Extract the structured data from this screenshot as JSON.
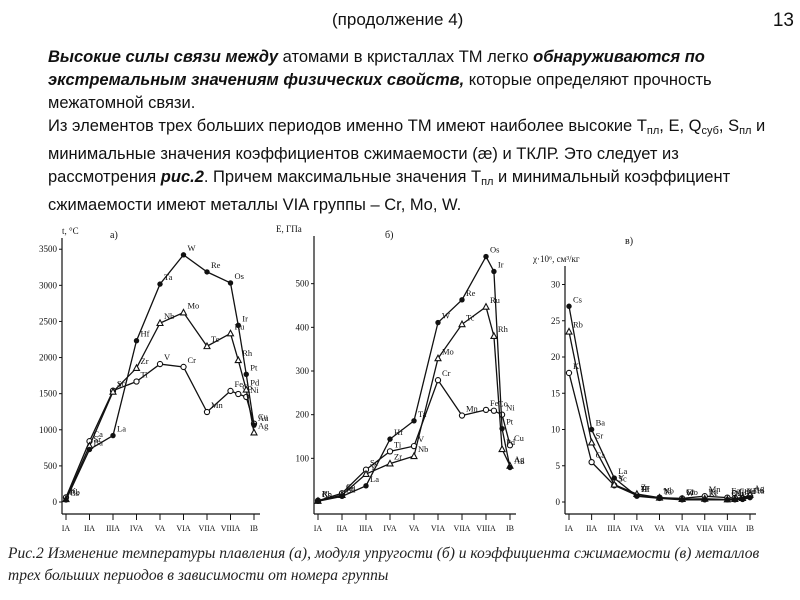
{
  "header": {
    "subtitle": "(продолжение 4)",
    "page_number": "13"
  },
  "paragraph1": {
    "part1_bi": "Высокие силы связи между",
    "part2": " атомами в кристаллах ТМ легко ",
    "part3_bi": "обнаруживаются по экстремальным значениям физических свойств,",
    "part4": " которые определяют прочность межатомной связи."
  },
  "paragraph2": {
    "t1": "Из элементов трех больших периодов именно ТМ имеют наиболее высокие Т",
    "t1_sub": "пл",
    "t2": ", Е, Q",
    "t2_sub": "суб",
    "t3": ", S",
    "t3_sub": "пл",
    "t4": " и минимальные значения коэффициентов сжимаемости (æ) и ТКЛР. Это следует из рассмотрения ",
    "t4_bi": "рис.2",
    "t5": ". Причем максимальные значения Т",
    "t5_sub": "пл",
    "t6": " и минимальный коэффициент сжимаемости имеют металлы VIA группы – Cr, Mo, W."
  },
  "caption": "Рис.2 Изменение температуры плавления (а), модуля упругости (б) и коэффициента сжимаемости (в) металлов трех больших периодов в зависимости от номера группы",
  "chart_data": [
    {
      "type": "line",
      "panel_label": "а)",
      "ylabel": "t, °C",
      "ylim": [
        0,
        3600
      ],
      "yticks": [
        0,
        500,
        1000,
        1500,
        2000,
        2500,
        3000,
        3500
      ],
      "groups": [
        "IA",
        "IIA",
        "IIIA",
        "IVA",
        "VA",
        "VIA",
        "VIIA",
        "VIIIA",
        "IB"
      ],
      "series": [
        {
          "points": [
            {
              "x": 1,
              "y": 64,
              "label": "K"
            },
            {
              "x": 2,
              "y": 842,
              "label": "Ca"
            },
            {
              "x": 3,
              "y": 1541,
              "label": "Sc"
            },
            {
              "x": 4,
              "y": 1668,
              "label": "Ti"
            },
            {
              "x": 5,
              "y": 1910,
              "label": "V"
            },
            {
              "x": 6,
              "y": 1870,
              "label": "Cr"
            },
            {
              "x": 7,
              "y": 1246,
              "label": "Mn"
            },
            {
              "x": 8,
              "y": 1538,
              "label": "Fe"
            },
            {
              "x": 8.33,
              "y": 1495,
              "label": "Co"
            },
            {
              "x": 8.67,
              "y": 1455,
              "label": "Ni"
            },
            {
              "x": 9,
              "y": 1085,
              "label": "Cu"
            }
          ]
        },
        {
          "points": [
            {
              "x": 1,
              "y": 39,
              "label": "Rb"
            },
            {
              "x": 2,
              "y": 777,
              "label": "Sr"
            },
            {
              "x": 3,
              "y": 1526,
              "label": "Y"
            },
            {
              "x": 4,
              "y": 1855,
              "label": "Zr"
            },
            {
              "x": 5,
              "y": 2477,
              "label": "Nb"
            },
            {
              "x": 6,
              "y": 2623,
              "label": "Mo"
            },
            {
              "x": 7,
              "y": 2157,
              "label": "Tc"
            },
            {
              "x": 8,
              "y": 2334,
              "label": "Ru"
            },
            {
              "x": 8.33,
              "y": 1964,
              "label": "Rh"
            },
            {
              "x": 8.67,
              "y": 1555,
              "label": "Pd"
            },
            {
              "x": 9,
              "y": 962,
              "label": "Ag"
            }
          ]
        },
        {
          "points": [
            {
              "x": 1,
              "y": 28,
              "label": "Cs"
            },
            {
              "x": 2,
              "y": 727,
              "label": "Ba"
            },
            {
              "x": 3,
              "y": 920,
              "label": "La"
            },
            {
              "x": 4,
              "y": 2233,
              "label": "Hf"
            },
            {
              "x": 5,
              "y": 3017,
              "label": "Ta"
            },
            {
              "x": 6,
              "y": 3422,
              "label": "W"
            },
            {
              "x": 7,
              "y": 3186,
              "label": "Re"
            },
            {
              "x": 8,
              "y": 3033,
              "label": "Os"
            },
            {
              "x": 8.33,
              "y": 2446,
              "label": "Ir"
            },
            {
              "x": 8.67,
              "y": 1768,
              "label": "Pt"
            },
            {
              "x": 9,
              "y": 1064,
              "label": "Au"
            }
          ]
        }
      ]
    },
    {
      "type": "line",
      "panel_label": "б)",
      "ylabel": "E, ГПа",
      "ylim": [
        0,
        600
      ],
      "yticks": [
        100,
        200,
        300,
        400,
        500
      ],
      "groups": [
        "IA",
        "IIA",
        "IIIA",
        "IVA",
        "VA",
        "VIA",
        "VIIA",
        "VIIIA",
        "IB"
      ],
      "series": [
        {
          "points": [
            {
              "x": 1,
              "y": 3,
              "label": "K"
            },
            {
              "x": 2,
              "y": 20,
              "label": "Ca"
            },
            {
              "x": 3,
              "y": 74,
              "label": "Sc"
            },
            {
              "x": 4,
              "y": 116,
              "label": "Ti"
            },
            {
              "x": 5,
              "y": 128,
              "label": "V"
            },
            {
              "x": 6,
              "y": 279,
              "label": "Cr"
            },
            {
              "x": 7,
              "y": 198,
              "label": "Mn"
            },
            {
              "x": 8,
              "y": 211,
              "label": "Fe"
            },
            {
              "x": 8.33,
              "y": 209,
              "label": "Co"
            },
            {
              "x": 8.67,
              "y": 200,
              "label": "Ni"
            },
            {
              "x": 9,
              "y": 130,
              "label": "Cu"
            }
          ]
        },
        {
          "points": [
            {
              "x": 1,
              "y": 2.4,
              "label": "Rb"
            },
            {
              "x": 2,
              "y": 16,
              "label": "Sr"
            },
            {
              "x": 3,
              "y": 64,
              "label": "Y"
            },
            {
              "x": 4,
              "y": 88,
              "label": "Zr"
            },
            {
              "x": 5,
              "y": 105,
              "label": "Nb"
            },
            {
              "x": 6,
              "y": 329,
              "label": "Mo"
            },
            {
              "x": 7,
              "y": 407,
              "label": "Tc"
            },
            {
              "x": 8,
              "y": 447,
              "label": "Ru"
            },
            {
              "x": 8.33,
              "y": 380,
              "label": "Rh"
            },
            {
              "x": 8.67,
              "y": 121,
              "label": "Pd"
            },
            {
              "x": 9,
              "y": 83,
              "label": "Ag"
            }
          ]
        },
        {
          "points": [
            {
              "x": 1,
              "y": 1.7,
              "label": "Cs"
            },
            {
              "x": 2,
              "y": 13,
              "label": "Ba"
            },
            {
              "x": 3,
              "y": 37,
              "label": "La"
            },
            {
              "x": 4,
              "y": 144,
              "label": "Hf"
            },
            {
              "x": 5,
              "y": 186,
              "label": "Ta"
            },
            {
              "x": 6,
              "y": 411,
              "label": "W"
            },
            {
              "x": 7,
              "y": 463,
              "label": "Re"
            },
            {
              "x": 8,
              "y": 562,
              "label": "Os"
            },
            {
              "x": 8.33,
              "y": 528,
              "label": "Ir"
            },
            {
              "x": 8.67,
              "y": 168,
              "label": "Pt"
            },
            {
              "x": 9,
              "y": 79,
              "label": "Au"
            }
          ]
        }
      ]
    },
    {
      "type": "line",
      "panel_label": "в)",
      "ylabel": "χ·10⁶, см³/кг",
      "ylim": [
        0,
        32
      ],
      "yticks": [
        0,
        5,
        10,
        15,
        20,
        25,
        30
      ],
      "groups": [
        "IA",
        "IIA",
        "IIIA",
        "IVA",
        "VA",
        "VIA",
        "VIIA",
        "VIIIA",
        "IB"
      ],
      "series": [
        {
          "points": [
            {
              "x": 1,
              "y": 17.8,
              "label": "K"
            },
            {
              "x": 2,
              "y": 5.5,
              "label": "Ca"
            },
            {
              "x": 3,
              "y": 2.3,
              "label": "Sc"
            },
            {
              "x": 4,
              "y": 0.9,
              "label": "Ti"
            },
            {
              "x": 5,
              "y": 0.6,
              "label": "V"
            },
            {
              "x": 6,
              "y": 0.5,
              "label": "Cr"
            },
            {
              "x": 7,
              "y": 0.8,
              "label": "Mn"
            },
            {
              "x": 8,
              "y": 0.6,
              "label": "Fe"
            },
            {
              "x": 8.33,
              "y": 0.55,
              "label": "Co"
            },
            {
              "x": 8.67,
              "y": 0.55,
              "label": "Ni"
            },
            {
              "x": 9,
              "y": 0.7,
              "label": "Cu"
            }
          ]
        },
        {
          "points": [
            {
              "x": 1,
              "y": 23.5,
              "label": "Rb"
            },
            {
              "x": 2,
              "y": 8.2,
              "label": "Sr"
            },
            {
              "x": 3,
              "y": 2.4,
              "label": "Y"
            },
            {
              "x": 4,
              "y": 1.1,
              "label": "Zr"
            },
            {
              "x": 5,
              "y": 0.6,
              "label": "Nb"
            },
            {
              "x": 6,
              "y": 0.4,
              "label": "Mo"
            },
            {
              "x": 7,
              "y": 0.45,
              "label": "Tc"
            },
            {
              "x": 8,
              "y": 0.35,
              "label": "Ru"
            },
            {
              "x": 8.33,
              "y": 0.4,
              "label": "Rh"
            },
            {
              "x": 8.67,
              "y": 0.55,
              "label": "Pd"
            },
            {
              "x": 9,
              "y": 1.0,
              "label": "Ag"
            }
          ]
        },
        {
          "points": [
            {
              "x": 1,
              "y": 27.0,
              "label": "Cs"
            },
            {
              "x": 2,
              "y": 10.0,
              "label": "Ba"
            },
            {
              "x": 3,
              "y": 3.3,
              "label": "La"
            },
            {
              "x": 4,
              "y": 0.8,
              "label": "Hf"
            },
            {
              "x": 5,
              "y": 0.5,
              "label": "Ta"
            },
            {
              "x": 6,
              "y": 0.3,
              "label": "W"
            },
            {
              "x": 7,
              "y": 0.3,
              "label": "Re"
            },
            {
              "x": 8,
              "y": 0.3,
              "label": "Os"
            },
            {
              "x": 8.33,
              "y": 0.3,
              "label": "Ir"
            },
            {
              "x": 8.67,
              "y": 0.35,
              "label": "Pt"
            },
            {
              "x": 9,
              "y": 0.6,
              "label": "Au"
            }
          ]
        }
      ]
    }
  ]
}
